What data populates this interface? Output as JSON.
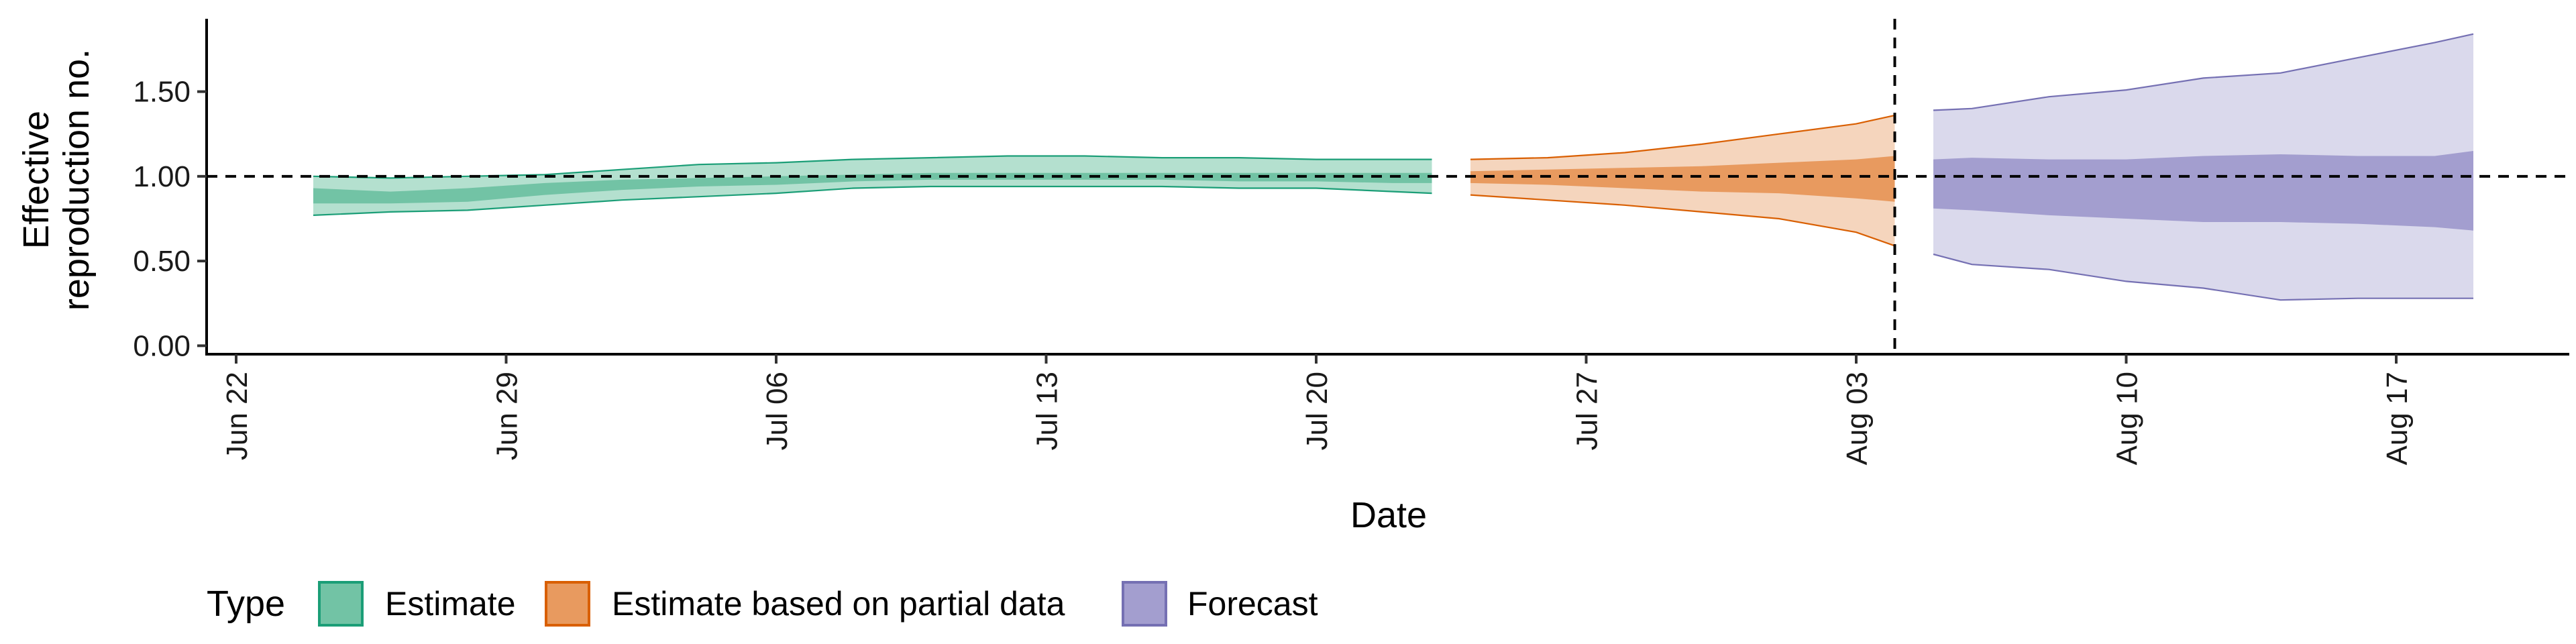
{
  "chart_data": {
    "type": "area",
    "xlabel": "Date",
    "ylabel_lines": [
      "Effective",
      "reproduction no."
    ],
    "ylim": [
      -0.05,
      1.93
    ],
    "y_ticks": [
      0,
      0.5,
      1,
      1.5
    ],
    "y_tick_labels": [
      "0.00",
      "0.50",
      "1.00",
      "1.50"
    ],
    "x_ticks": [
      "2020-06-22",
      "2020-06-29",
      "2020-07-06",
      "2020-07-13",
      "2020-07-20",
      "2020-07-27",
      "2020-08-03",
      "2020-08-10",
      "2020-08-17"
    ],
    "x_tick_labels": [
      "Jun 22",
      "Jun 29",
      "Jul 06",
      "Jul 13",
      "Jul 20",
      "Jul 27",
      "Aug 03",
      "Aug 10",
      "Aug 17"
    ],
    "xlim": [
      "2020-06-22",
      "2020-08-22"
    ],
    "hline": 1.0,
    "vline": "2020-08-04",
    "legend": {
      "title": "Type",
      "position": "bottom-left",
      "items": [
        {
          "label": "Estimate",
          "fill": "#72c3a5",
          "stroke": "#1b9e77"
        },
        {
          "label": "Estimate based on partial data",
          "fill": "#e89a5f",
          "stroke": "#d95f02"
        },
        {
          "label": "Forecast",
          "fill": "#a39ecf",
          "stroke": "#7570b3"
        }
      ]
    },
    "series": [
      {
        "name": "Estimate",
        "outer_fill": "#b4e0cf",
        "inner_fill": "#72c3a5",
        "stroke": "#1b9e77",
        "x": [
          "2020-06-24",
          "2020-06-26",
          "2020-06-28",
          "2020-06-30",
          "2020-07-02",
          "2020-07-04",
          "2020-07-06",
          "2020-07-08",
          "2020-07-10",
          "2020-07-12",
          "2020-07-14",
          "2020-07-16",
          "2020-07-18",
          "2020-07-20",
          "2020-07-22",
          "2020-07-23"
        ],
        "outer_low": [
          0.77,
          0.79,
          0.8,
          0.83,
          0.86,
          0.88,
          0.9,
          0.93,
          0.94,
          0.94,
          0.94,
          0.94,
          0.93,
          0.93,
          0.91,
          0.9
        ],
        "inner_low": [
          0.84,
          0.84,
          0.85,
          0.89,
          0.92,
          0.94,
          0.95,
          0.97,
          0.98,
          0.98,
          0.98,
          0.98,
          0.97,
          0.97,
          0.96,
          0.96
        ],
        "inner_high": [
          0.93,
          0.91,
          0.93,
          0.96,
          0.98,
          0.99,
          1.0,
          1.01,
          1.02,
          1.02,
          1.02,
          1.02,
          1.02,
          1.02,
          1.02,
          1.02
        ],
        "outer_high": [
          1.0,
          0.99,
          1.0,
          1.01,
          1.04,
          1.07,
          1.08,
          1.1,
          1.11,
          1.12,
          1.12,
          1.11,
          1.11,
          1.1,
          1.1,
          1.1
        ]
      },
      {
        "name": "Estimate based on partial data",
        "outer_fill": "#f5d5bd",
        "inner_fill": "#e89a5f",
        "stroke": "#d95f02",
        "x": [
          "2020-07-24",
          "2020-07-26",
          "2020-07-28",
          "2020-07-30",
          "2020-08-01",
          "2020-08-03",
          "2020-08-04"
        ],
        "outer_low": [
          0.89,
          0.86,
          0.83,
          0.79,
          0.75,
          0.67,
          0.59
        ],
        "inner_low": [
          0.96,
          0.95,
          0.93,
          0.91,
          0.9,
          0.87,
          0.85
        ],
        "inner_high": [
          1.03,
          1.04,
          1.05,
          1.06,
          1.08,
          1.1,
          1.12
        ],
        "outer_high": [
          1.1,
          1.11,
          1.14,
          1.19,
          1.25,
          1.31,
          1.36
        ]
      },
      {
        "name": "Forecast",
        "outer_fill": "#dad9ec",
        "inner_fill": "#a39ecf",
        "stroke": "#7570b3",
        "x": [
          "2020-08-05",
          "2020-08-06",
          "2020-08-08",
          "2020-08-10",
          "2020-08-12",
          "2020-08-14",
          "2020-08-16",
          "2020-08-18",
          "2020-08-19"
        ],
        "outer_low": [
          0.54,
          0.48,
          0.45,
          0.38,
          0.34,
          0.27,
          0.28,
          0.28,
          0.28
        ],
        "inner_low": [
          0.81,
          0.8,
          0.77,
          0.75,
          0.73,
          0.73,
          0.72,
          0.7,
          0.68
        ],
        "inner_high": [
          1.1,
          1.11,
          1.1,
          1.1,
          1.12,
          1.13,
          1.12,
          1.12,
          1.15
        ],
        "outer_high": [
          1.39,
          1.4,
          1.47,
          1.51,
          1.58,
          1.61,
          1.7,
          1.79,
          1.84
        ]
      }
    ]
  }
}
